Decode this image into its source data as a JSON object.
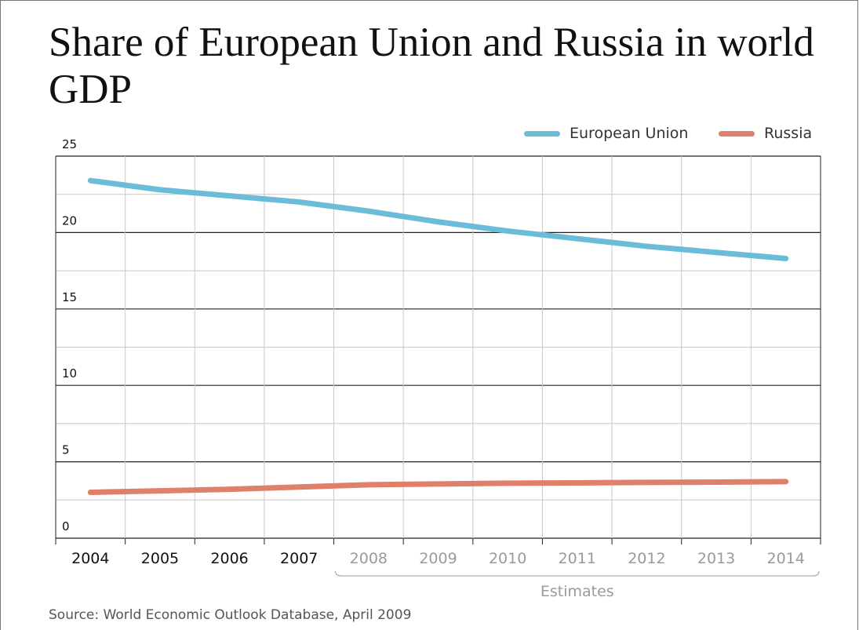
{
  "chart_data": {
    "type": "line",
    "title": "Share of European Union and Russia in world GDP",
    "xlabel": "",
    "ylabel": "",
    "x": [
      "2004",
      "2005",
      "2006",
      "2007",
      "2008",
      "2009",
      "2010",
      "2011",
      "2012",
      "2013",
      "2014"
    ],
    "estimated_from_index": 4,
    "estimates_label": "Estimates",
    "ylim": [
      0,
      25
    ],
    "yticks": [
      "0",
      "5",
      "10",
      "15",
      "20",
      "25"
    ],
    "grid": true,
    "legend_position": "top-right",
    "series": [
      {
        "name": "European Union",
        "color": "#6bbcd8",
        "values": [
          23.4,
          22.8,
          22.4,
          22.0,
          21.4,
          20.7,
          20.1,
          19.6,
          19.1,
          18.7,
          18.3
        ]
      },
      {
        "name": "Russia",
        "color": "#e07f6a",
        "values": [
          3.0,
          3.1,
          3.2,
          3.35,
          3.5,
          3.55,
          3.6,
          3.62,
          3.65,
          3.67,
          3.7
        ]
      }
    ]
  },
  "source": "Source: World Economic Outlook Database, April 2009"
}
